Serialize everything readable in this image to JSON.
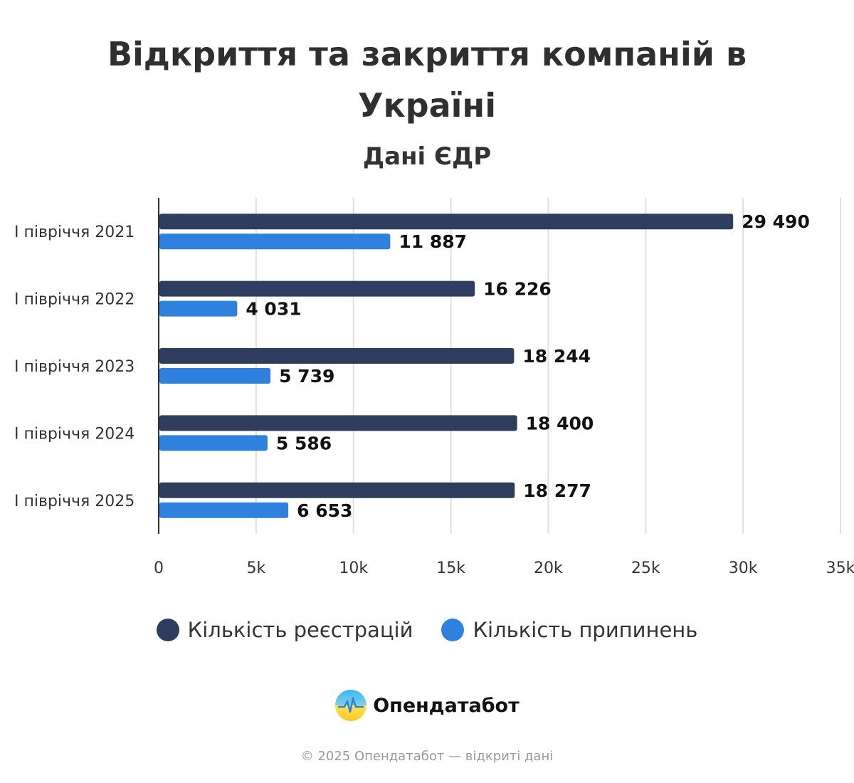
{
  "chart_data": {
    "type": "bar",
    "orientation": "horizontal",
    "title": "Відкриття та закриття компаній в Україні",
    "subtitle": "Дані ЄДР",
    "categories": [
      "I півріччя 2021",
      "I півріччя 2022",
      "I півріччя 2023",
      "I півріччя 2024",
      "I півріччя 2025"
    ],
    "series": [
      {
        "name": "Кількість реєстрацій",
        "color": "#2e3d5e",
        "values": [
          29490,
          16226,
          18244,
          18400,
          18277
        ],
        "labels": [
          "29 490",
          "16 226",
          "18 244",
          "18 400",
          "18 277"
        ]
      },
      {
        "name": "Кількість припинень",
        "color": "#2e81dc",
        "values": [
          11887,
          4031,
          5739,
          5586,
          6653
        ],
        "labels": [
          "11 887",
          "4 031",
          "5 739",
          "5 586",
          "6 653"
        ]
      }
    ],
    "xlim": [
      0,
      35000
    ],
    "xticks": [
      0,
      5000,
      10000,
      15000,
      20000,
      25000,
      30000,
      35000
    ],
    "xtick_labels": [
      "0",
      "5k",
      "10k",
      "15k",
      "20k",
      "25k",
      "30k",
      "35k"
    ],
    "grid": true,
    "legend_position": "bottom-center",
    "xlabel": "",
    "ylabel": ""
  },
  "brand": {
    "name": "Опендатабот",
    "logo_icon": "opendatabot-logo-icon"
  },
  "footer": {
    "text": "© 2025 Опендатабот — відкриті дані"
  }
}
